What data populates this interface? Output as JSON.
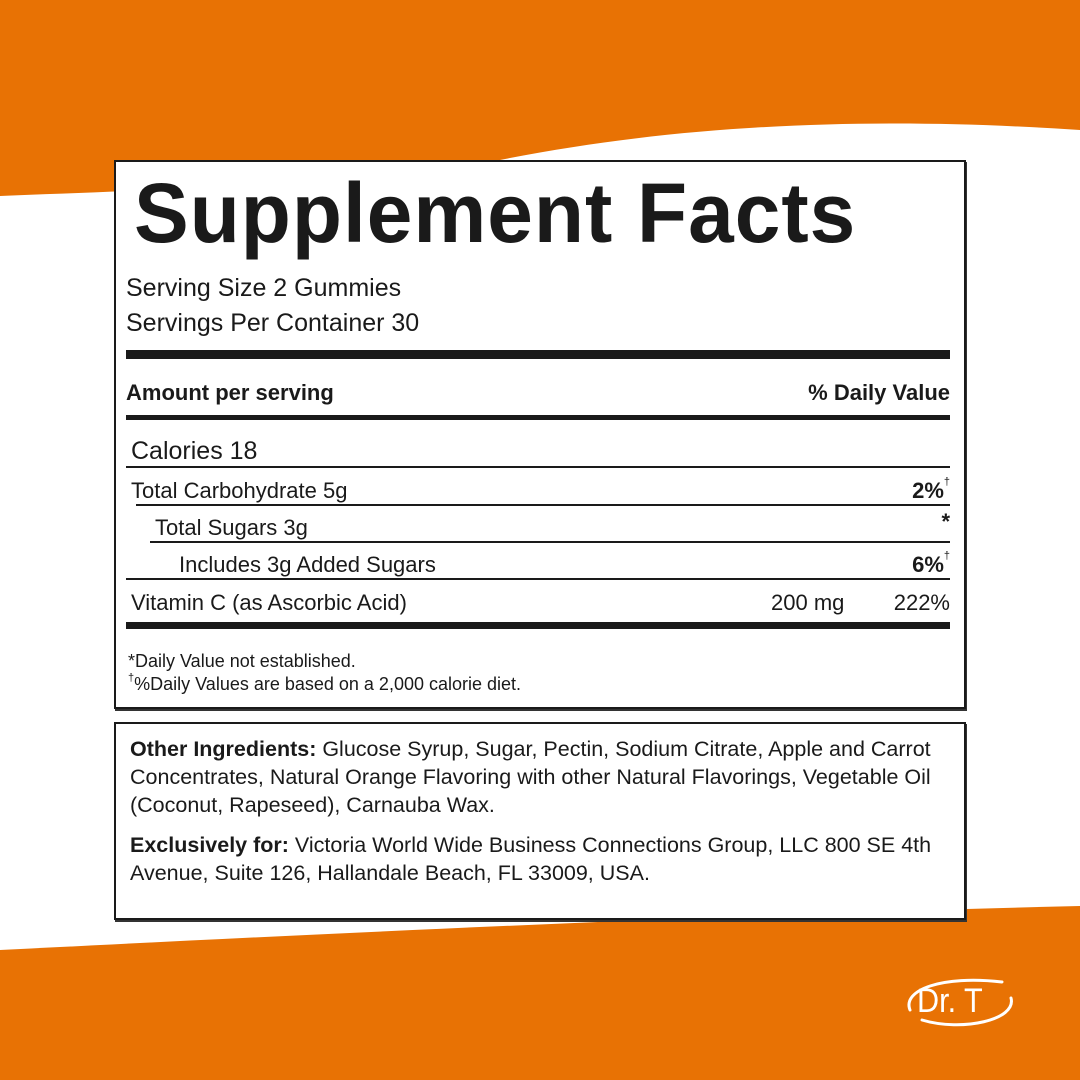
{
  "colors": {
    "brand_orange": "#e87204",
    "text": "#1a1a1a",
    "background": "#ffffff"
  },
  "facts": {
    "title": "Supplement Facts",
    "serving_size": "Serving Size 2 Gummies",
    "servings_per_container": "Servings Per Container 30",
    "header_left": "Amount per serving",
    "header_right": "% Daily Value",
    "rows": [
      {
        "label": "Calories 18",
        "amount": "",
        "dv": "",
        "mark": ""
      },
      {
        "label": "Total Carbohydrate 5g",
        "amount": "",
        "dv": "2%",
        "mark": "†"
      },
      {
        "label": "Total Sugars 3g",
        "amount": "",
        "dv": "*",
        "mark": ""
      },
      {
        "label": "Includes 3g Added Sugars",
        "amount": "",
        "dv": "6%",
        "mark": "†"
      },
      {
        "label": "Vitamin C (as Ascorbic Acid)",
        "amount": "200 mg",
        "dv": "222%",
        "mark": ""
      }
    ],
    "footnote1": "*Daily Value not established.",
    "footnote2_mark": "†",
    "footnote2": "%Daily Values are based on a 2,000 calorie diet."
  },
  "ingredients": {
    "other_label": "Other Ingredients:",
    "other_text": " Glucose Syrup, Sugar, Pectin, Sodium Citrate, Apple and Carrot Concentrates, Natural Orange Flavoring with other Natural Flavorings, Vegetable Oil (Coconut, Rapeseed), Carnauba Wax.",
    "exclusive_label": "Exclusively for:",
    "exclusive_text": " Victoria World Wide Business Connections Group, LLC 800 SE 4th Avenue, Suite 126, Hallandale Beach, FL 33009, USA."
  },
  "logo": {
    "text": "Dr. T"
  }
}
